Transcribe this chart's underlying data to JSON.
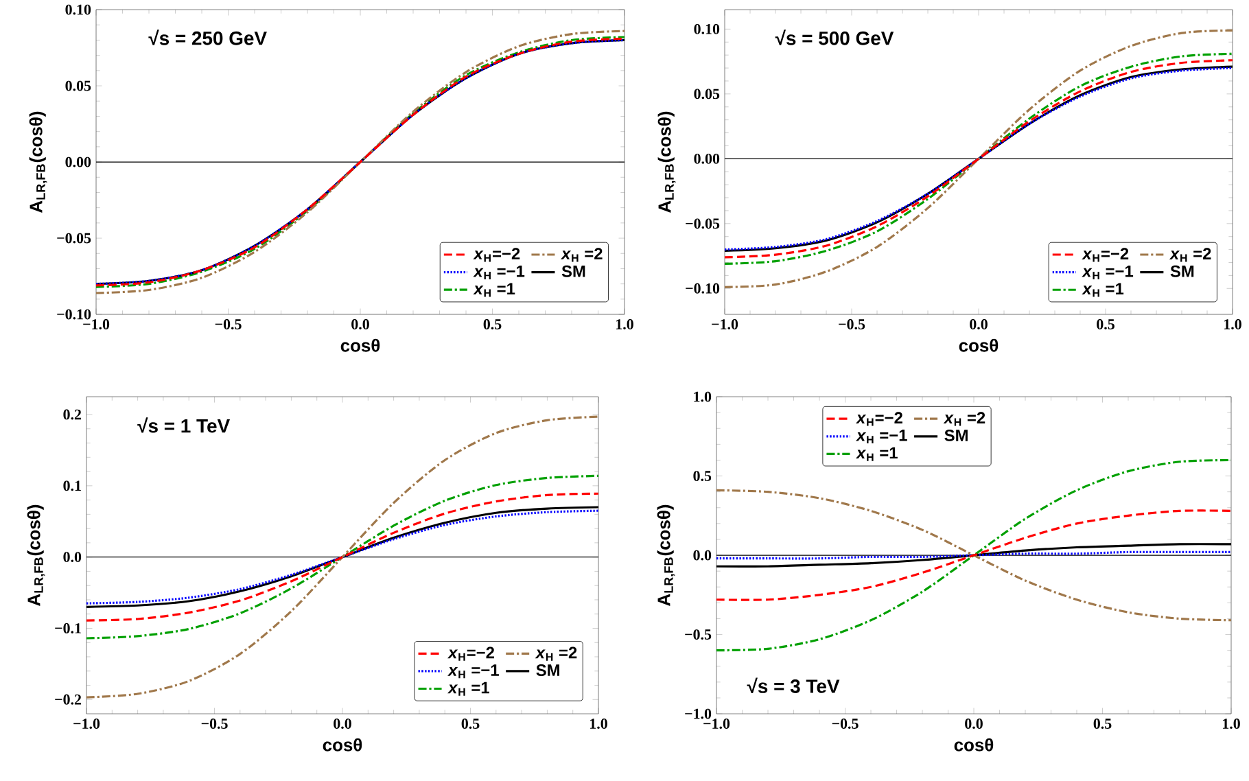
{
  "chart_data": [
    {
      "type": "line",
      "annotations": [
        "√s = 250 GeV"
      ],
      "xlabel": "cosθ",
      "ylabel": "A$_{LR,FB}$(cosθ)",
      "x": [
        -1,
        -0.8,
        -0.6,
        -0.4,
        -0.2,
        0,
        0.2,
        0.4,
        0.6,
        0.8,
        1
      ],
      "xlim": [
        -1,
        1
      ],
      "ylim": [
        -0.1,
        0.1
      ],
      "xticks": [
        {
          "value": -1,
          "label": "−1.0"
        },
        {
          "value": -0.5,
          "label": "−0.5"
        },
        {
          "value": 0,
          "label": "0.0"
        },
        {
          "value": 0.5,
          "label": "0.5"
        },
        {
          "value": 1,
          "label": "1.0"
        }
      ],
      "yticks": [
        {
          "value": -0.1,
          "label": "−0.10"
        },
        {
          "value": -0.05,
          "label": "−0.05"
        },
        {
          "value": 0,
          "label": "0.00"
        },
        {
          "value": 0.05,
          "label": "0.05"
        },
        {
          "value": 0.1,
          "label": "0.10"
        }
      ],
      "legend": "bottom right",
      "ref_lines": [
        {
          "axis": "y",
          "value": 0,
          "color": "#000000"
        }
      ],
      "series": [
        {
          "name": "*x*$_{H}$=−2",
          "color": "#ff0000",
          "line_style": "dashed",
          "values": [
            -0.081,
            -0.079,
            -0.071,
            -0.056,
            -0.031,
            0,
            0.031,
            0.056,
            0.071,
            0.079,
            0.081
          ]
        },
        {
          "name": "*x*$_{H}$ =2",
          "color": "#a0784b",
          "line_style": "dashdot",
          "values": [
            -0.086,
            -0.084,
            -0.076,
            -0.059,
            -0.033,
            0,
            0.033,
            0.059,
            0.076,
            0.084,
            0.086
          ]
        },
        {
          "name": "*x*$_{H}$ =−1",
          "color": "#0000ff",
          "line_style": "dotted",
          "values": [
            -0.08,
            -0.078,
            -0.071,
            -0.055,
            -0.031,
            0,
            0.031,
            0.055,
            0.071,
            0.078,
            0.08
          ]
        },
        {
          "name": "SM",
          "color": "#000000",
          "line_style": "solid",
          "values": [
            -0.08,
            -0.078,
            -0.071,
            -0.055,
            -0.031,
            0,
            0.031,
            0.055,
            0.071,
            0.078,
            0.08
          ]
        },
        {
          "name": "*x*$_{H}$ =1",
          "color": "#00a000",
          "line_style": "dashdot",
          "values": [
            -0.082,
            -0.08,
            -0.072,
            -0.057,
            -0.032,
            0,
            0.032,
            0.057,
            0.072,
            0.08,
            0.082
          ]
        }
      ]
    },
    {
      "type": "line",
      "annotations": [
        "√s = 500 GeV"
      ],
      "xlabel": "cosθ",
      "ylabel": "A$_{LR,FB}$(cosθ)",
      "x": [
        -1,
        -0.8,
        -0.6,
        -0.4,
        -0.2,
        0,
        0.2,
        0.4,
        0.6,
        0.8,
        1
      ],
      "xlim": [
        -1,
        1
      ],
      "ylim": [
        -0.12,
        0.115
      ],
      "xticks": [
        {
          "value": -1,
          "label": "−1.0"
        },
        {
          "value": -0.5,
          "label": "−0.5"
        },
        {
          "value": 0,
          "label": "0.0"
        },
        {
          "value": 0.5,
          "label": "0.5"
        },
        {
          "value": 1,
          "label": "1.0"
        }
      ],
      "yticks": [
        {
          "value": -0.1,
          "label": "−0.10"
        },
        {
          "value": -0.05,
          "label": "−0.05"
        },
        {
          "value": 0,
          "label": "0.00"
        },
        {
          "value": 0.05,
          "label": "0.05"
        },
        {
          "value": 0.1,
          "label": "0.10"
        }
      ],
      "legend": "bottom right",
      "ref_lines": [
        {
          "axis": "y",
          "value": 0,
          "color": "#000000"
        }
      ],
      "series": [
        {
          "name": "*x*$_{H}$=−2",
          "color": "#ff0000",
          "line_style": "dashed",
          "values": [
            -0.076,
            -0.074,
            -0.067,
            -0.052,
            -0.029,
            0,
            0.029,
            0.052,
            0.067,
            0.074,
            0.076
          ]
        },
        {
          "name": "*x*$_{H}$ =2",
          "color": "#a0784b",
          "line_style": "dashdot",
          "values": [
            -0.099,
            -0.097,
            -0.087,
            -0.068,
            -0.038,
            0,
            0.038,
            0.068,
            0.087,
            0.097,
            0.099
          ]
        },
        {
          "name": "*x*$_{H}$ =−1",
          "color": "#0000ff",
          "line_style": "dotted",
          "values": [
            -0.07,
            -0.068,
            -0.062,
            -0.048,
            -0.027,
            0,
            0.027,
            0.048,
            0.062,
            0.068,
            0.07
          ]
        },
        {
          "name": "SM",
          "color": "#000000",
          "line_style": "solid",
          "values": [
            -0.071,
            -0.069,
            -0.063,
            -0.049,
            -0.027,
            0,
            0.027,
            0.049,
            0.063,
            0.069,
            0.071
          ]
        },
        {
          "name": "*x*$_{H}$ =1",
          "color": "#00a000",
          "line_style": "dashdot",
          "values": [
            -0.081,
            -0.079,
            -0.071,
            -0.056,
            -0.031,
            0,
            0.031,
            0.056,
            0.071,
            0.079,
            0.081
          ]
        }
      ]
    },
    {
      "type": "line",
      "annotations": [
        "√s = 1 TeV"
      ],
      "xlabel": "cosθ",
      "ylabel": "A$_{LR,FB}$(cosθ)",
      "x": [
        -1,
        -0.8,
        -0.6,
        -0.4,
        -0.2,
        0,
        0.2,
        0.4,
        0.6,
        0.8,
        1
      ],
      "xlim": [
        -1,
        1
      ],
      "ylim": [
        -0.22,
        0.225
      ],
      "xticks": [
        {
          "value": -1,
          "label": "−1.0"
        },
        {
          "value": -0.5,
          "label": "−0.5"
        },
        {
          "value": 0,
          "label": "0.0"
        },
        {
          "value": 0.5,
          "label": "0.5"
        },
        {
          "value": 1,
          "label": "1.0"
        }
      ],
      "yticks": [
        {
          "value": -0.2,
          "label": "−0.2"
        },
        {
          "value": -0.1,
          "label": "−0.1"
        },
        {
          "value": 0,
          "label": "0.0"
        },
        {
          "value": 0.1,
          "label": "0.1"
        },
        {
          "value": 0.2,
          "label": "0.2"
        }
      ],
      "legend": "bottom right",
      "ref_lines": [
        {
          "axis": "y",
          "value": 0,
          "color": "#000000"
        }
      ],
      "series": [
        {
          "name": "*x*$_{H}$=−2",
          "color": "#ff0000",
          "line_style": "dashed",
          "values": [
            -0.089,
            -0.087,
            -0.078,
            -0.061,
            -0.034,
            0,
            0.034,
            0.061,
            0.078,
            0.087,
            0.089
          ]
        },
        {
          "name": "*x*$_{H}$ =2",
          "color": "#a0784b",
          "line_style": "dashdot",
          "values": [
            -0.197,
            -0.192,
            -0.174,
            -0.136,
            -0.076,
            0,
            0.076,
            0.136,
            0.174,
            0.192,
            0.197
          ]
        },
        {
          "name": "*x*$_{H}$ =−1",
          "color": "#0000ff",
          "line_style": "dotted",
          "values": [
            -0.065,
            -0.063,
            -0.057,
            -0.045,
            -0.025,
            0,
            0.025,
            0.045,
            0.057,
            0.063,
            0.065
          ]
        },
        {
          "name": "SM",
          "color": "#000000",
          "line_style": "solid",
          "values": [
            -0.07,
            -0.068,
            -0.062,
            -0.048,
            -0.027,
            0,
            0.027,
            0.048,
            0.062,
            0.068,
            0.07
          ]
        },
        {
          "name": "*x*$_{H}$ =1",
          "color": "#00a000",
          "line_style": "dashdot",
          "values": [
            -0.114,
            -0.111,
            -0.101,
            -0.079,
            -0.044,
            0,
            0.044,
            0.079,
            0.101,
            0.111,
            0.114
          ]
        }
      ]
    },
    {
      "type": "line",
      "annotations": [
        "√s = 3 TeV"
      ],
      "xlabel": "cosθ",
      "ylabel": "A$_{LR,FB}$(cosθ)",
      "x": [
        -1,
        -0.8,
        -0.6,
        -0.4,
        -0.2,
        0,
        0.2,
        0.4,
        0.6,
        0.8,
        1
      ],
      "xlim": [
        -1,
        1
      ],
      "ylim": [
        -1,
        1
      ],
      "xticks": [
        {
          "value": -1,
          "label": "−1.0"
        },
        {
          "value": -0.5,
          "label": "−0.5"
        },
        {
          "value": 0,
          "label": "0.0"
        },
        {
          "value": 0.5,
          "label": "0.5"
        },
        {
          "value": 1,
          "label": "1.0"
        }
      ],
      "yticks": [
        {
          "value": -1,
          "label": "−1.0"
        },
        {
          "value": -0.5,
          "label": "−0.5"
        },
        {
          "value": 0,
          "label": "0.0"
        },
        {
          "value": 0.5,
          "label": "0.5"
        },
        {
          "value": 1,
          "label": "1.0"
        }
      ],
      "legend": "top",
      "ref_lines": [
        {
          "axis": "y",
          "value": 0,
          "color": "#000000"
        }
      ],
      "series": [
        {
          "name": "*x*$_{H}$=−2",
          "color": "#ff0000",
          "line_style": "dashed",
          "values": [
            -0.28,
            -0.28,
            -0.25,
            -0.2,
            -0.11,
            0,
            0.11,
            0.2,
            0.25,
            0.28,
            0.28
          ]
        },
        {
          "name": "*x*$_{H}$ =2",
          "color": "#a0784b",
          "line_style": "dashdot",
          "values": [
            0.41,
            0.4,
            0.36,
            0.28,
            0.16,
            0,
            -0.16,
            -0.28,
            -0.36,
            -0.4,
            -0.41
          ]
        },
        {
          "name": "*x*$_{H}$ =−1",
          "color": "#0000ff",
          "line_style": "dotted",
          "values": [
            -0.02,
            -0.02,
            -0.02,
            -0.01,
            -0.01,
            0,
            0.01,
            0.01,
            0.02,
            0.02,
            0.02
          ]
        },
        {
          "name": "SM",
          "color": "#000000",
          "line_style": "solid",
          "values": [
            -0.07,
            -0.07,
            -0.06,
            -0.05,
            -0.03,
            0,
            0.03,
            0.05,
            0.06,
            0.07,
            0.07
          ]
        },
        {
          "name": "*x*$_{H}$ =1",
          "color": "#00a000",
          "line_style": "dashdot",
          "values": [
            -0.6,
            -0.59,
            -0.53,
            -0.41,
            -0.23,
            0,
            0.23,
            0.41,
            0.53,
            0.59,
            0.6
          ]
        }
      ]
    }
  ]
}
